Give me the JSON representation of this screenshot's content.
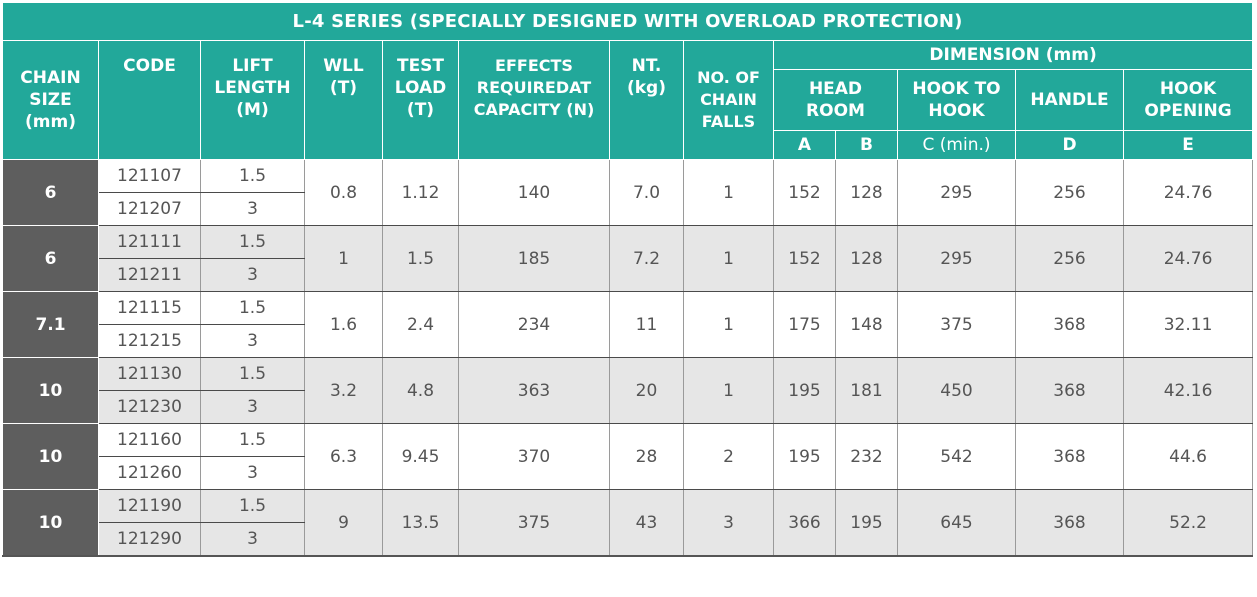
{
  "title": "L-4 SERIES (SPECIALLY DESIGNED WITH OVERLOAD PROTECTION)",
  "headers": {
    "chain_size": [
      "CHAIN",
      "SIZE",
      "(mm)"
    ],
    "code": "CODE",
    "lift_length": [
      "LIFT",
      "LENGTH",
      "(M)"
    ],
    "wll": [
      "WLL",
      "(T)"
    ],
    "test_load": [
      "TEST",
      "LOAD",
      "(T)"
    ],
    "effects": [
      "EFFECTS",
      "REQUIREDAT",
      "CAPACITY (N)"
    ],
    "nt": [
      "NT.",
      "(kg)"
    ],
    "falls": [
      "NO. OF",
      "CHAIN",
      "FALLS"
    ],
    "dimension": "DIMENSION (mm)",
    "head_room": [
      "HEAD",
      "ROOM"
    ],
    "hook_to_hook": [
      "HOOK TO",
      "HOOK"
    ],
    "handle": "HANDLE",
    "hook_opening": [
      "HOOK",
      "OPENING"
    ],
    "sub": {
      "a": "A",
      "b": "B",
      "c": "C (min.)",
      "d": "D",
      "e": "E"
    }
  },
  "rows": [
    {
      "size": "6",
      "codes": [
        "121107",
        "121207"
      ],
      "lifts": [
        "1.5",
        "3"
      ],
      "wll": "0.8",
      "test": "1.12",
      "effects": "140",
      "nt": "7.0",
      "falls": "1",
      "a": "152",
      "b": "128",
      "c": "295",
      "d": "256",
      "e": "24.76"
    },
    {
      "size": "6",
      "codes": [
        "121111",
        "121211"
      ],
      "lifts": [
        "1.5",
        "3"
      ],
      "wll": "1",
      "test": "1.5",
      "effects": "185",
      "nt": "7.2",
      "falls": "1",
      "a": "152",
      "b": "128",
      "c": "295",
      "d": "256",
      "e": "24.76"
    },
    {
      "size": "7.1",
      "codes": [
        "121115",
        "121215"
      ],
      "lifts": [
        "1.5",
        "3"
      ],
      "wll": "1.6",
      "test": "2.4",
      "effects": "234",
      "nt": "11",
      "falls": "1",
      "a": "175",
      "b": "148",
      "c": "375",
      "d": "368",
      "e": "32.11"
    },
    {
      "size": "10",
      "codes": [
        "121130",
        "121230"
      ],
      "lifts": [
        "1.5",
        "3"
      ],
      "wll": "3.2",
      "test": "4.8",
      "effects": "363",
      "nt": "20",
      "falls": "1",
      "a": "195",
      "b": "181",
      "c": "450",
      "d": "368",
      "e": "42.16"
    },
    {
      "size": "10",
      "codes": [
        "121160",
        "121260"
      ],
      "lifts": [
        "1.5",
        "3"
      ],
      "wll": "6.3",
      "test": "9.45",
      "effects": "370",
      "nt": "28",
      "falls": "2",
      "a": "195",
      "b": "232",
      "c": "542",
      "d": "368",
      "e": "44.6"
    },
    {
      "size": "10",
      "codes": [
        "121190",
        "121290"
      ],
      "lifts": [
        "1.5",
        "3"
      ],
      "wll": "9",
      "test": "13.5",
      "effects": "375",
      "nt": "43",
      "falls": "3",
      "a": "366",
      "b": "195",
      "c": "645",
      "d": "368",
      "e": "52.2"
    }
  ]
}
